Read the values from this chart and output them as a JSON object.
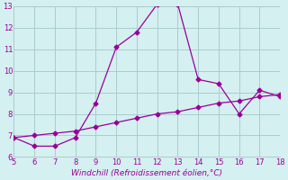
{
  "xlabel": "Windchill (Refroidissement éolien,°C)",
  "line1_x": [
    5,
    6,
    7,
    8,
    9,
    10,
    11,
    12,
    13,
    14,
    15,
    16,
    17,
    18
  ],
  "line1_y": [
    6.9,
    6.5,
    6.5,
    6.9,
    8.5,
    11.1,
    11.8,
    13.1,
    13.1,
    9.6,
    9.4,
    8.0,
    9.1,
    8.8
  ],
  "line2_x": [
    5,
    6,
    7,
    8,
    9,
    10,
    11,
    12,
    13,
    14,
    15,
    16,
    17,
    18
  ],
  "line2_y": [
    6.9,
    7.0,
    7.1,
    7.2,
    7.4,
    7.6,
    7.8,
    8.0,
    8.1,
    8.3,
    8.5,
    8.6,
    8.8,
    8.9
  ],
  "line_color": "#990099",
  "bg_color": "#d4f0f0",
  "grid_color": "#aacccc",
  "xlim": [
    5,
    18
  ],
  "ylim": [
    6,
    13
  ],
  "xticks": [
    5,
    6,
    7,
    8,
    9,
    10,
    11,
    12,
    13,
    14,
    15,
    16,
    17,
    18
  ],
  "yticks": [
    6,
    7,
    8,
    9,
    10,
    11,
    12,
    13
  ],
  "marker": "D",
  "markersize": 2.5,
  "linewidth": 0.9
}
